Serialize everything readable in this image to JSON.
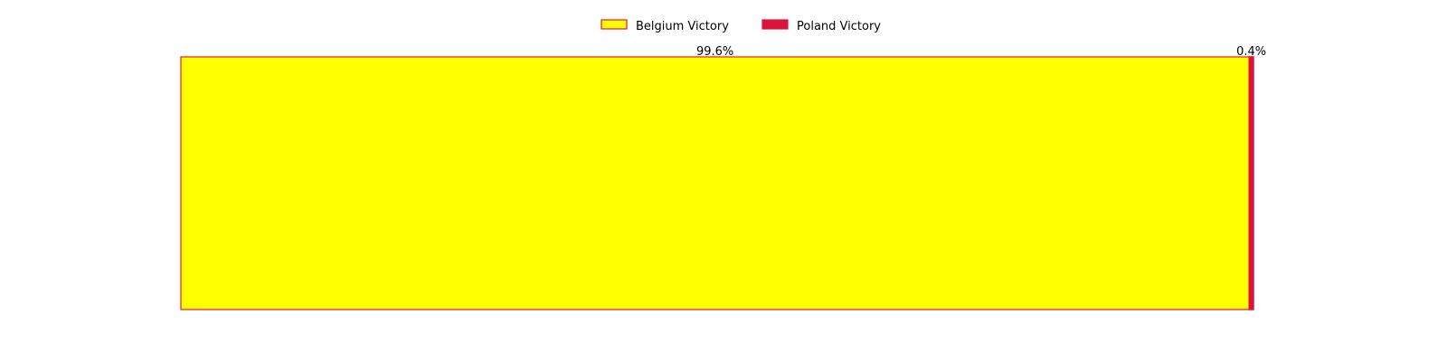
{
  "chart_data": {
    "type": "bar",
    "orientation": "horizontal",
    "stacked": true,
    "categories": [
      ""
    ],
    "series": [
      {
        "name": "Belgium Victory",
        "values": [
          99.6
        ],
        "label": "99.6%",
        "color": "#ffff00",
        "edge_color": "#e8172f"
      },
      {
        "name": "Poland Victory",
        "values": [
          0.4
        ],
        "label": "0.4%",
        "color": "#dc143c",
        "edge_color": "#dc143c"
      }
    ],
    "xlim": [
      0,
      100
    ],
    "axes_visible": false,
    "grid": false,
    "legend_position": "top-center"
  }
}
